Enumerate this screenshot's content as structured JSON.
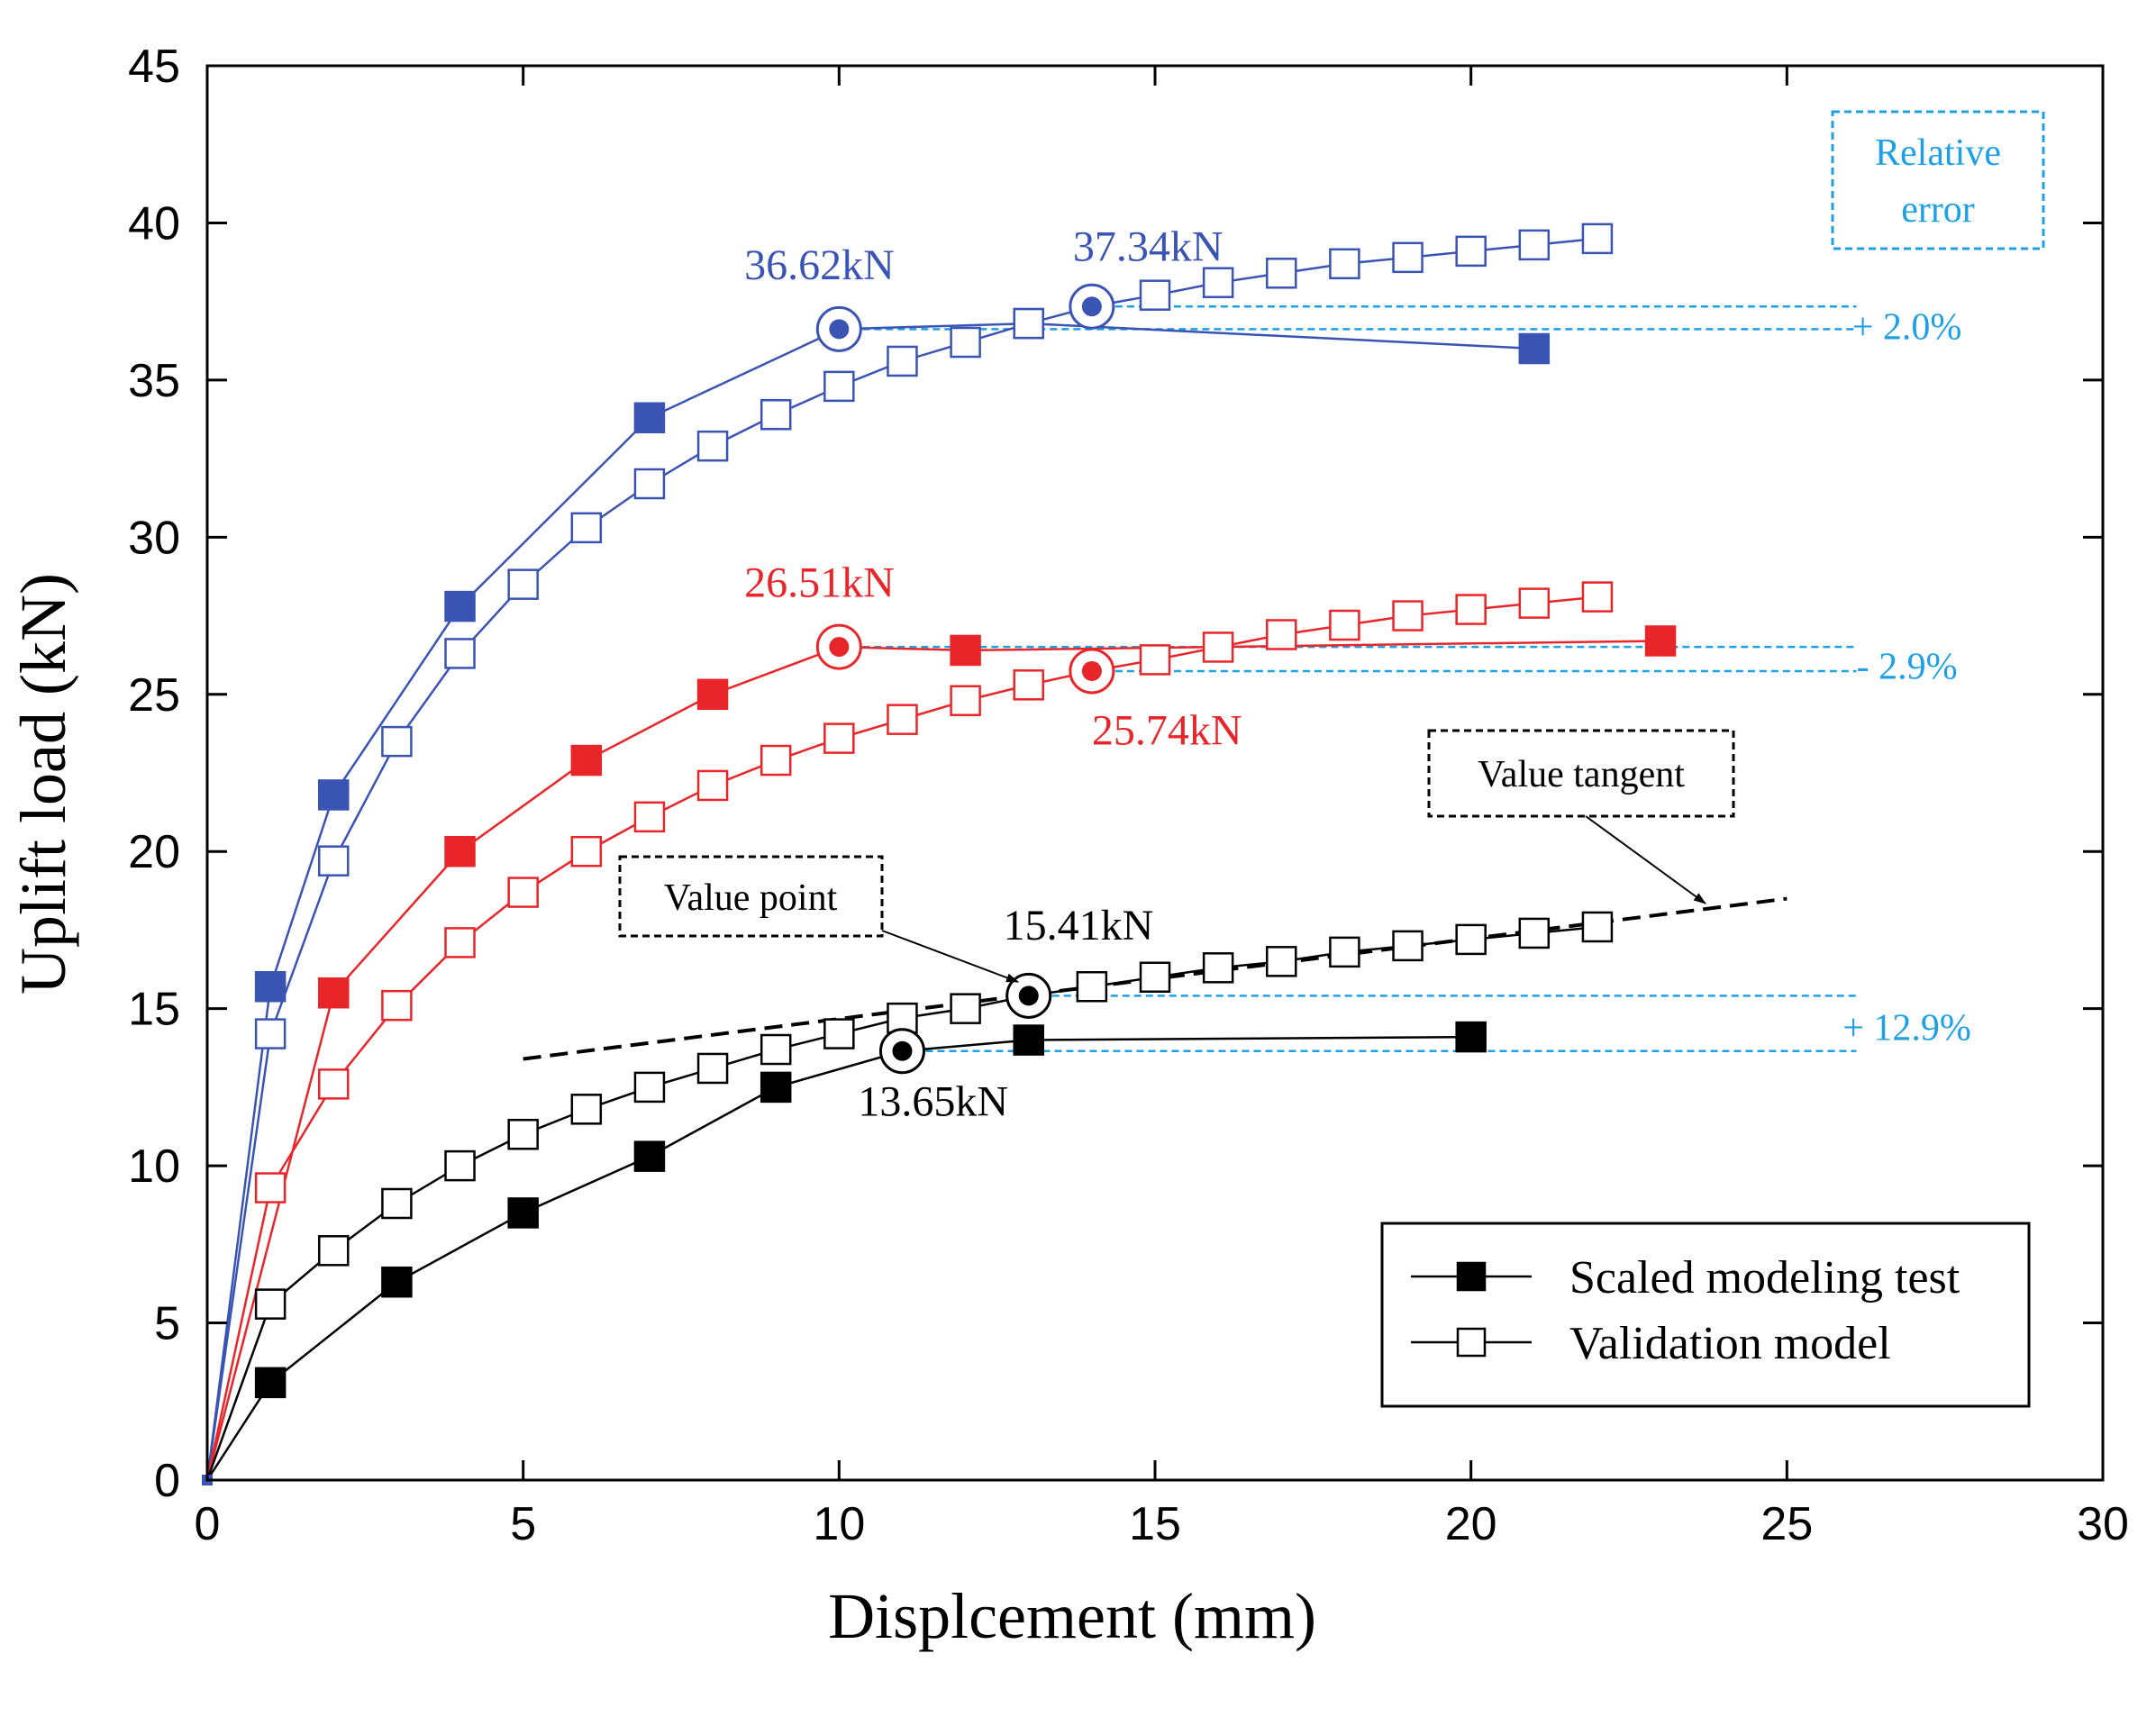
{
  "chart_data": {
    "type": "line",
    "xlabel": "Displcement (mm)",
    "ylabel": "Uplift load (kN)",
    "xlim": [
      0,
      30
    ],
    "ylim": [
      0,
      45
    ],
    "xticks": [
      0,
      5,
      10,
      15,
      20,
      25,
      30
    ],
    "yticks": [
      0,
      5,
      10,
      15,
      20,
      25,
      30,
      35,
      40,
      45
    ],
    "grid": false,
    "legend": {
      "position": "bottom-right",
      "entries": [
        {
          "label": "Scaled modeling test",
          "marker": "filled-square"
        },
        {
          "label": "Validation model",
          "marker": "open-square"
        }
      ]
    },
    "series": [
      {
        "name": "Blue scaled modeling test",
        "group": "blue",
        "marker": "filled",
        "color": "#3a54b4",
        "x": [
          0,
          1,
          2,
          4,
          7,
          10,
          13,
          21
        ],
        "y": [
          0,
          15.7,
          21.8,
          27.8,
          33.8,
          36.62,
          36.8,
          36.0
        ]
      },
      {
        "name": "Blue validation model",
        "group": "blue",
        "marker": "open",
        "color": "#3a54b4",
        "x": [
          0,
          1,
          2,
          3,
          4,
          5,
          6,
          7,
          8,
          9,
          10,
          11,
          12,
          13,
          14,
          15,
          16,
          17,
          18,
          19,
          20,
          21,
          22
        ],
        "y": [
          0,
          14.2,
          19.7,
          23.5,
          26.3,
          28.5,
          30.3,
          31.7,
          32.9,
          33.9,
          34.8,
          35.6,
          36.2,
          36.8,
          37.34,
          37.7,
          38.1,
          38.4,
          38.7,
          38.9,
          39.1,
          39.3,
          39.5
        ]
      },
      {
        "name": "Red scaled modeling test",
        "group": "red",
        "marker": "filled",
        "color": "#e8262a",
        "x": [
          0,
          2,
          4,
          6,
          8,
          10,
          12,
          23
        ],
        "y": [
          0,
          15.5,
          20.0,
          22.9,
          25.0,
          26.51,
          26.4,
          26.7
        ]
      },
      {
        "name": "Red validation model",
        "group": "red",
        "marker": "open",
        "color": "#e8262a",
        "x": [
          0,
          1,
          2,
          3,
          4,
          5,
          6,
          7,
          8,
          9,
          10,
          11,
          12,
          13,
          14,
          15,
          16,
          17,
          18,
          19,
          20,
          21,
          22
        ],
        "y": [
          0,
          9.3,
          12.6,
          15.1,
          17.1,
          18.7,
          20.0,
          21.1,
          22.1,
          22.9,
          23.6,
          24.2,
          24.8,
          25.3,
          25.74,
          26.1,
          26.5,
          26.9,
          27.2,
          27.5,
          27.7,
          27.9,
          28.1
        ]
      },
      {
        "name": "Black scaled modeling test",
        "group": "black",
        "marker": "filled",
        "color": "#000000",
        "x": [
          0,
          1,
          3,
          5,
          7,
          9,
          11,
          13,
          20
        ],
        "y": [
          0,
          3.1,
          6.3,
          8.5,
          10.3,
          12.5,
          13.65,
          14.0,
          14.1
        ]
      },
      {
        "name": "Black validation model",
        "group": "black",
        "marker": "open",
        "color": "#000000",
        "x": [
          0,
          1,
          2,
          3,
          4,
          5,
          6,
          7,
          8,
          9,
          10,
          11,
          12,
          13,
          14,
          15,
          16,
          17,
          18,
          19,
          20,
          21,
          22
        ],
        "y": [
          0,
          5.6,
          7.3,
          8.8,
          10.0,
          11.0,
          11.8,
          12.5,
          13.1,
          13.7,
          14.2,
          14.7,
          15.0,
          15.41,
          15.7,
          16.0,
          16.3,
          16.5,
          16.8,
          17.0,
          17.2,
          17.4,
          17.6
        ]
      }
    ],
    "value_points": [
      {
        "label": "36.62kN",
        "x": 10,
        "y": 36.62,
        "color": "#3a54b4",
        "label_at": [
          8.5,
          38.2
        ]
      },
      {
        "label": "37.34kN",
        "x": 14,
        "y": 37.34,
        "color": "#3a54b4",
        "label_at": [
          13.7,
          38.8
        ]
      },
      {
        "label": "26.51kN",
        "x": 10,
        "y": 26.51,
        "color": "#e8262a",
        "label_at": [
          8.5,
          28.1
        ]
      },
      {
        "label": "25.74kN",
        "x": 14,
        "y": 25.74,
        "color": "#e8262a",
        "label_at": [
          14.0,
          23.4
        ]
      },
      {
        "label": "15.41kN",
        "x": 13,
        "y": 15.41,
        "color": "#000000",
        "label_at": [
          12.6,
          17.2
        ]
      },
      {
        "label": "13.65kN",
        "x": 11,
        "y": 13.65,
        "color": "#000000",
        "label_at": [
          10.3,
          11.6
        ]
      }
    ],
    "error_pairs": [
      {
        "label": "+ 2.0%",
        "upper": 37.34,
        "lower": 36.62,
        "from_x": [
          14,
          10
        ],
        "label_at": [
          26.9,
          36.3
        ]
      },
      {
        "label": "- 2.9%",
        "upper": 26.51,
        "lower": 25.74,
        "from_x": [
          10,
          14
        ],
        "label_at": [
          26.9,
          25.5
        ]
      },
      {
        "label": "+ 12.9%",
        "upper": 15.41,
        "lower": 13.65,
        "from_x": [
          13,
          11
        ],
        "label_at": [
          26.9,
          14.0
        ]
      }
    ],
    "tangent_line": {
      "x": [
        5,
        25
      ],
      "y": [
        13.4,
        18.5
      ]
    },
    "annotations": {
      "relative_error": [
        "Relative",
        "error"
      ],
      "value_tangent": "Value tangent",
      "value_point": "Value point"
    },
    "colors": {
      "blue": "#3a54b4",
      "red": "#e8262a",
      "black": "#000000",
      "error": "#1ea0e4"
    }
  }
}
